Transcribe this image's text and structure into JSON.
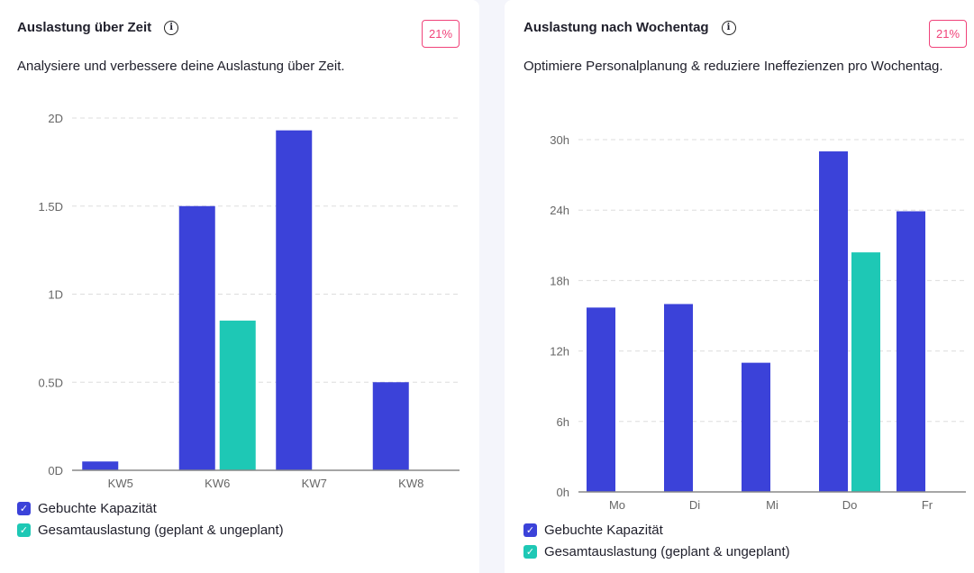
{
  "colors": {
    "booked": "#3b42d9",
    "total": "#1ec8b5",
    "badge": "#f0437a"
  },
  "legend": {
    "booked": "Gebuchte Kapazität",
    "total": "Gesamtauslastung (geplant & ungeplant)"
  },
  "panels": [
    {
      "title": "Auslastung über Zeit",
      "badge": "21%",
      "description": "Analysiere und verbessere deine Auslastung über Zeit."
    },
    {
      "title": "Auslastung nach Wochentag",
      "badge": "21%",
      "description": "Optimiere Personalplanung & reduziere Ineffezienzen pro Wochentag."
    }
  ],
  "chart_data": [
    {
      "type": "bar",
      "title": "Auslastung über Zeit",
      "categories": [
        "KW5",
        "KW6",
        "KW7",
        "KW8"
      ],
      "ylim": [
        0,
        2
      ],
      "yticks": [
        "0D",
        "0.5D",
        "1D",
        "1.5D",
        "2D"
      ],
      "ytick_values": [
        0,
        0.5,
        1,
        1.5,
        2
      ],
      "series": [
        {
          "name": "Gebuchte Kapazität",
          "values": [
            0.05,
            1.5,
            1.93,
            0.5
          ]
        },
        {
          "name": "Gesamtauslastung (geplant & ungeplant)",
          "values": [
            0,
            0.85,
            0,
            0
          ]
        }
      ]
    },
    {
      "type": "bar",
      "title": "Auslastung nach Wochentag",
      "categories": [
        "Mo",
        "Di",
        "Mi",
        "Do",
        "Fr"
      ],
      "ylim": [
        0,
        30
      ],
      "yticks": [
        "0h",
        "6h",
        "12h",
        "18h",
        "24h",
        "30h"
      ],
      "ytick_values": [
        0,
        6,
        12,
        18,
        24,
        30
      ],
      "series": [
        {
          "name": "Gebuchte Kapazität",
          "values": [
            15.7,
            16.0,
            11.0,
            29.0,
            23.9
          ]
        },
        {
          "name": "Gesamtauslastung (geplant & ungeplant)",
          "values": [
            0,
            0,
            0,
            20.4,
            0
          ]
        }
      ]
    }
  ]
}
